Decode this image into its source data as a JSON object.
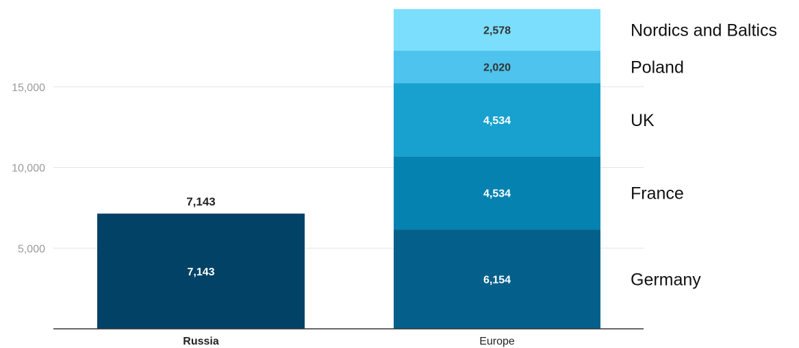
{
  "chart_data": {
    "type": "bar",
    "stacked": true,
    "categories": [
      "Russia",
      "Europe"
    ],
    "category_label_bold": [
      true,
      false
    ],
    "ylim": [
      0,
      19000
    ],
    "y_ticks": [
      {
        "value": 5000,
        "label": "5,000"
      },
      {
        "value": 10000,
        "label": "10,000"
      },
      {
        "value": 15000,
        "label": "15,000"
      }
    ],
    "grid": true,
    "totals": [
      {
        "category": "Russia",
        "value": 7143,
        "label": "7,143"
      }
    ],
    "series": [
      {
        "name": "",
        "color": "#024266",
        "label_color": "#ffffff",
        "values": [
          7143,
          null
        ],
        "labels": [
          "7,143",
          ""
        ]
      },
      {
        "name": "Germany",
        "color": "#04608b",
        "label_color": "#ffffff",
        "values": [
          null,
          6154
        ],
        "labels": [
          "",
          "6,154"
        ]
      },
      {
        "name": "France",
        "color": "#0582b0",
        "label_color": "#ffffff",
        "values": [
          null,
          4534
        ],
        "labels": [
          "",
          "4,534"
        ]
      },
      {
        "name": "UK",
        "color": "#18a1cf",
        "label_color": "#ffffff",
        "values": [
          null,
          4534
        ],
        "labels": [
          "",
          "4,534"
        ]
      },
      {
        "name": "Poland",
        "color": "#4ec3ed",
        "label_color": "#333333",
        "values": [
          null,
          2020
        ],
        "labels": [
          "",
          "2,020"
        ]
      },
      {
        "name": "Nordics and Baltics",
        "color": "#7adefc",
        "label_color": "#333333",
        "values": [
          null,
          2578
        ],
        "labels": [
          "",
          "2,578"
        ]
      }
    ]
  }
}
